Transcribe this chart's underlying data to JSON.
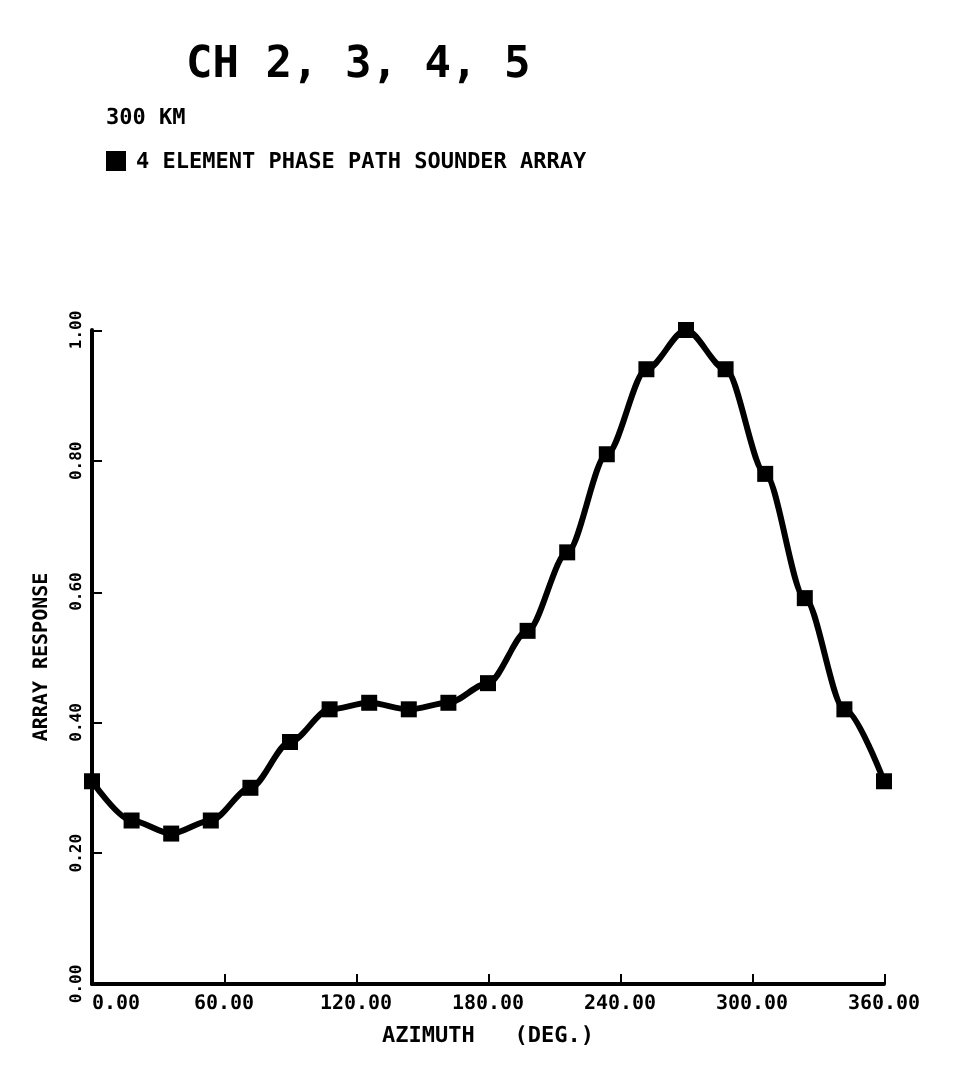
{
  "chart_data": {
    "type": "line",
    "title": "CH 2, 3, 4, 5",
    "subtitle": "300 KM",
    "xlabel": "AZIMUTH   (DEG.)",
    "ylabel": "ARRAY RESPONSE",
    "x": [
      0,
      18,
      36,
      54,
      72,
      90,
      108,
      126,
      144,
      162,
      180,
      198,
      216,
      234,
      252,
      270,
      288,
      306,
      324,
      342,
      360
    ],
    "series": [
      {
        "name": "4 ELEMENT PHASE PATH SOUNDER ARRAY",
        "color": "#000000",
        "values": [
          0.31,
          0.25,
          0.23,
          0.25,
          0.3,
          0.37,
          0.42,
          0.43,
          0.42,
          0.43,
          0.46,
          0.54,
          0.66,
          0.81,
          0.94,
          1.0,
          0.94,
          0.78,
          0.59,
          0.42,
          0.31
        ]
      }
    ],
    "xlim": [
      0,
      360
    ],
    "ylim": [
      0,
      1
    ],
    "xticks": [
      {
        "value": 0,
        "label": "0.00"
      },
      {
        "value": 60,
        "label": "60.00"
      },
      {
        "value": 120,
        "label": "120.00"
      },
      {
        "value": 180,
        "label": "180.00"
      },
      {
        "value": 240,
        "label": "240.00"
      },
      {
        "value": 300,
        "label": "300.00"
      },
      {
        "value": 360,
        "label": "360.00"
      }
    ],
    "yticks": [
      {
        "value": 0,
        "label": "0.00"
      },
      {
        "value": 0.2,
        "label": "0.20"
      },
      {
        "value": 0.4,
        "label": "0.40"
      },
      {
        "value": 0.6,
        "label": "0.60"
      },
      {
        "value": 0.8,
        "label": "0.80"
      },
      {
        "value": 1,
        "label": "1.00"
      }
    ],
    "marker": "square",
    "grid": false,
    "legend": "top left",
    "line_style": "solid"
  }
}
